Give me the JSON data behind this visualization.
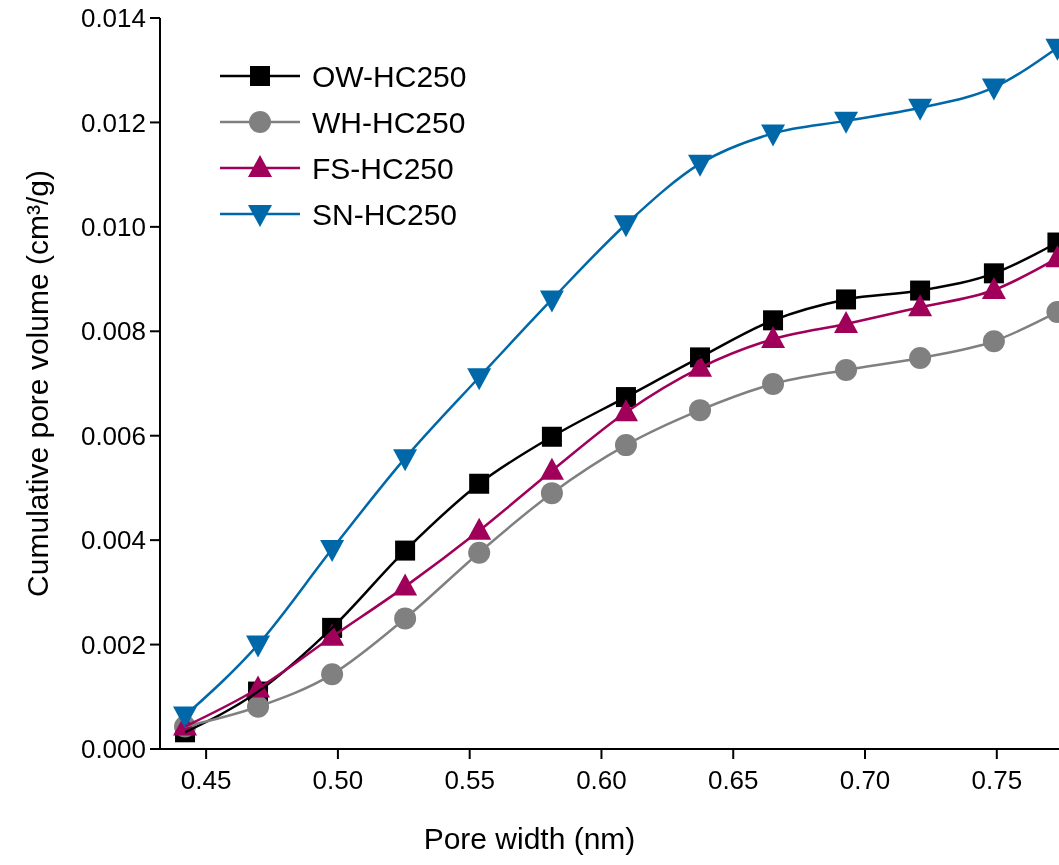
{
  "chart_data": {
    "type": "line",
    "xlabel": "Pore width (nm)",
    "ylabel": "Cumulative pore volume (cm³/g)",
    "x": [
      0.442,
      0.4697,
      0.4978,
      0.5255,
      0.5536,
      0.5812,
      0.6093,
      0.6374,
      0.6651,
      0.6928,
      0.7209,
      0.7489,
      0.773
    ],
    "xlim": [
      0.4325,
      0.7736
    ],
    "xticks": [
      0.45,
      {
        "value": 0.5,
        "label": "0.50"
      },
      0.55,
      {
        "value": 0.6,
        "label": "0.60"
      },
      0.65,
      {
        "value": 0.7,
        "label": "0.70"
      },
      0.75
    ],
    "ylim": [
      0,
      0.014
    ],
    "yticks": [
      {
        "value": 0,
        "label": "0.000"
      },
      {
        "value": 0.002,
        "label": "0.002"
      },
      {
        "value": 0.004,
        "label": "0.004"
      },
      {
        "value": 0.006,
        "label": "0.006"
      },
      {
        "value": 0.008,
        "label": "0.008"
      },
      {
        "value": 0.01,
        "label": "0.010"
      },
      {
        "value": 0.012,
        "label": "0.012"
      },
      {
        "value": 0.014,
        "label": "0.014"
      }
    ],
    "legend": "top left",
    "grid": false,
    "series": [
      {
        "name": "OW-HC250",
        "color": "#000000",
        "marker": "square",
        "values": [
          0.00032,
          0.0011,
          0.00232,
          0.0038,
          0.00508,
          0.00598,
          0.00674,
          0.0075,
          0.00821,
          0.00861,
          0.00878,
          0.00911,
          0.0097
        ]
      },
      {
        "name": "WH-HC250",
        "color": "#808080",
        "marker": "circle",
        "values": [
          0.00043,
          0.00081,
          0.00143,
          0.0025,
          0.00376,
          0.0049,
          0.00582,
          0.00649,
          0.00699,
          0.00726,
          0.00749,
          0.00781,
          0.00837
        ]
      },
      {
        "name": "FS-HC250",
        "color": "#a0005a",
        "marker": "triangle",
        "values": [
          0.00043,
          0.00116,
          0.00215,
          0.00311,
          0.00418,
          0.00533,
          0.00645,
          0.0073,
          0.00785,
          0.00814,
          0.00846,
          0.00879,
          0.0094
        ]
      },
      {
        "name": "SN-HC250",
        "color": "#0068a8",
        "marker": "triangle-down",
        "values": [
          0.00064,
          0.002,
          0.00383,
          0.00557,
          0.00712,
          0.00861,
          0.01005,
          0.01121,
          0.01179,
          0.01203,
          0.01228,
          0.01267,
          0.01343
        ]
      }
    ]
  }
}
